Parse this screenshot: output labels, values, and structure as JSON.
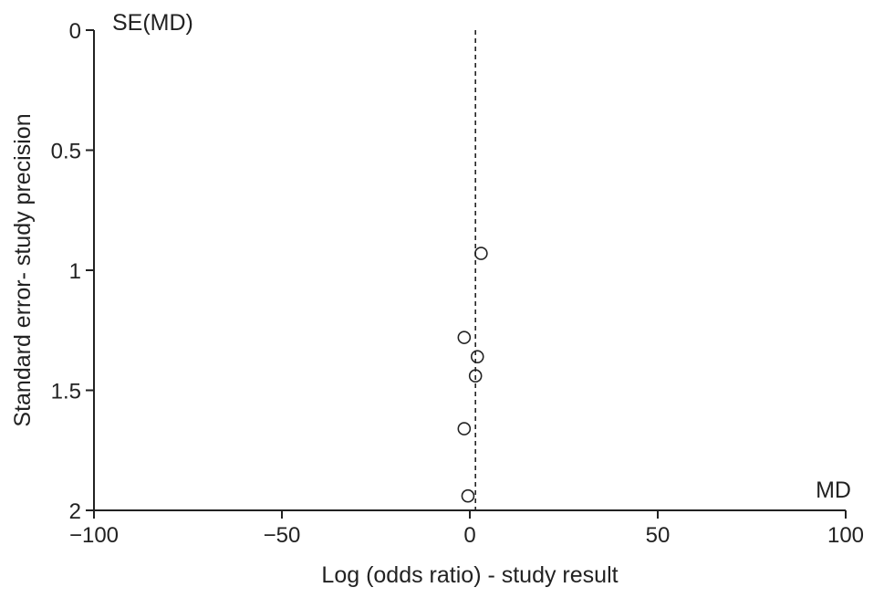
{
  "chart_data": {
    "type": "scatter",
    "title": "",
    "xlabel": "Log (odds ratio) - study result",
    "ylabel": "Standard error- study precision",
    "x_corner_label": "MD",
    "y_corner_label": "SE(MD)",
    "xlim": [
      -100,
      100
    ],
    "ylim": [
      0,
      2
    ],
    "y_inverted": true,
    "x_ticks": [
      -100,
      -50,
      0,
      50,
      100
    ],
    "x_tick_labels": [
      "−100",
      "−50",
      "0",
      "50",
      "100"
    ],
    "y_ticks": [
      0,
      0.5,
      1,
      1.5,
      2
    ],
    "y_tick_labels": [
      "0",
      "0.5",
      "1",
      "1.5",
      "2"
    ],
    "reference_line": {
      "x": 1.5,
      "style": "dashed"
    },
    "grid": false,
    "series": [
      {
        "marker": "open-circle",
        "points": [
          {
            "x": 3,
            "y": 0.93
          },
          {
            "x": -1.5,
            "y": 1.28
          },
          {
            "x": 2,
            "y": 1.36
          },
          {
            "x": 1.5,
            "y": 1.44
          },
          {
            "x": -1.5,
            "y": 1.66
          },
          {
            "x": -0.5,
            "y": 1.94
          }
        ]
      }
    ]
  }
}
